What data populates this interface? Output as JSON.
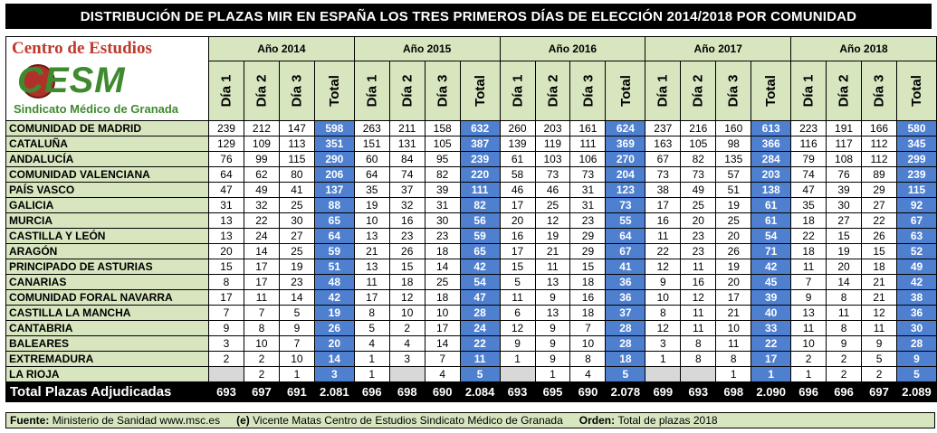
{
  "title": "DISTRIBUCIÓN DE PLAZAS MIR EN ESPAÑA LOS TRES PRIMEROS DÍAS DE ELECCIÓN 2014/2018 POR COMUNIDAD",
  "logo": {
    "line1": "Centro de Estudios",
    "line2": "CESM",
    "line3": "Sindicato Médico de Granada"
  },
  "footer": {
    "source_label": "Fuente:",
    "source_text": "Ministerio de Sanidad www.msc.es",
    "credit_label": "(e)",
    "credit_text": "Vicente Matas Centro de Estudios Sindicato Médico de Granada",
    "order_label": "Orden:",
    "order_text": "Total de plazas 2018"
  },
  "chart_data": {
    "type": "table",
    "title": "DISTRIBUCIÓN DE PLAZAS MIR EN ESPAÑA LOS TRES PRIMEROS DÍAS DE ELECCIÓN 2014/2018 POR COMUNIDAD",
    "years": [
      "Año 2014",
      "Año 2015",
      "Año 2016",
      "Año 2017",
      "Año 2018"
    ],
    "columns": [
      "Día 1",
      "Día 2",
      "Día 3",
      "Total"
    ],
    "rows": [
      {
        "region": "COMUNIDAD DE MADRID",
        "values": [
          "239",
          "212",
          "147",
          "598",
          "263",
          "211",
          "158",
          "632",
          "260",
          "203",
          "161",
          "624",
          "237",
          "216",
          "160",
          "613",
          "223",
          "191",
          "166",
          "580"
        ]
      },
      {
        "region": "CATALUÑA",
        "values": [
          "129",
          "109",
          "113",
          "351",
          "151",
          "131",
          "105",
          "387",
          "139",
          "119",
          "111",
          "369",
          "163",
          "105",
          "98",
          "366",
          "116",
          "117",
          "112",
          "345"
        ]
      },
      {
        "region": "ANDALUCÍA",
        "values": [
          "76",
          "99",
          "115",
          "290",
          "60",
          "84",
          "95",
          "239",
          "61",
          "103",
          "106",
          "270",
          "67",
          "82",
          "135",
          "284",
          "79",
          "108",
          "112",
          "299"
        ]
      },
      {
        "region": "COMUNIDAD VALENCIANA",
        "values": [
          "64",
          "62",
          "80",
          "206",
          "64",
          "74",
          "82",
          "220",
          "58",
          "73",
          "73",
          "204",
          "73",
          "73",
          "57",
          "203",
          "74",
          "76",
          "89",
          "239"
        ]
      },
      {
        "region": "PAÍS VASCO",
        "values": [
          "47",
          "49",
          "41",
          "137",
          "35",
          "37",
          "39",
          "111",
          "46",
          "46",
          "31",
          "123",
          "38",
          "49",
          "51",
          "138",
          "47",
          "39",
          "29",
          "115"
        ]
      },
      {
        "region": "GALICIA",
        "values": [
          "31",
          "32",
          "25",
          "88",
          "19",
          "32",
          "31",
          "82",
          "17",
          "25",
          "31",
          "73",
          "17",
          "25",
          "19",
          "61",
          "35",
          "30",
          "27",
          "92"
        ]
      },
      {
        "region": "MURCIA",
        "values": [
          "13",
          "22",
          "30",
          "65",
          "10",
          "16",
          "30",
          "56",
          "20",
          "12",
          "23",
          "55",
          "16",
          "20",
          "25",
          "61",
          "18",
          "27",
          "22",
          "67"
        ]
      },
      {
        "region": "CASTILLA Y LEÓN",
        "values": [
          "13",
          "24",
          "27",
          "64",
          "13",
          "23",
          "23",
          "59",
          "16",
          "19",
          "29",
          "64",
          "11",
          "23",
          "20",
          "54",
          "22",
          "15",
          "26",
          "63"
        ]
      },
      {
        "region": "ARAGÓN",
        "values": [
          "20",
          "14",
          "25",
          "59",
          "21",
          "26",
          "18",
          "65",
          "17",
          "21",
          "29",
          "67",
          "22",
          "23",
          "26",
          "71",
          "18",
          "19",
          "15",
          "52"
        ]
      },
      {
        "region": "PRINCIPADO DE ASTURIAS",
        "values": [
          "15",
          "17",
          "19",
          "51",
          "13",
          "15",
          "14",
          "42",
          "15",
          "11",
          "15",
          "41",
          "12",
          "11",
          "19",
          "42",
          "11",
          "20",
          "18",
          "49"
        ]
      },
      {
        "region": "CANARIAS",
        "values": [
          "8",
          "17",
          "23",
          "48",
          "11",
          "18",
          "25",
          "54",
          "5",
          "13",
          "18",
          "36",
          "9",
          "16",
          "20",
          "45",
          "7",
          "14",
          "21",
          "42"
        ]
      },
      {
        "region": "COMUNIDAD FORAL NAVARRA",
        "values": [
          "17",
          "11",
          "14",
          "42",
          "17",
          "12",
          "18",
          "47",
          "11",
          "9",
          "16",
          "36",
          "10",
          "12",
          "17",
          "39",
          "9",
          "8",
          "21",
          "38"
        ]
      },
      {
        "region": "CASTILLA LA MANCHA",
        "values": [
          "7",
          "7",
          "5",
          "19",
          "8",
          "10",
          "10",
          "28",
          "6",
          "13",
          "18",
          "37",
          "8",
          "11",
          "21",
          "40",
          "13",
          "11",
          "12",
          "36"
        ]
      },
      {
        "region": "CANTABRIA",
        "values": [
          "9",
          "8",
          "9",
          "26",
          "5",
          "2",
          "17",
          "24",
          "12",
          "9",
          "7",
          "28",
          "12",
          "11",
          "10",
          "33",
          "11",
          "8",
          "11",
          "30"
        ]
      },
      {
        "region": "BALEARES",
        "values": [
          "3",
          "10",
          "7",
          "20",
          "4",
          "4",
          "14",
          "22",
          "9",
          "9",
          "10",
          "28",
          "3",
          "8",
          "11",
          "22",
          "10",
          "9",
          "9",
          "28"
        ]
      },
      {
        "region": "EXTREMADURA",
        "values": [
          "2",
          "2",
          "10",
          "14",
          "1",
          "3",
          "7",
          "11",
          "1",
          "9",
          "8",
          "18",
          "1",
          "8",
          "8",
          "17",
          "2",
          "2",
          "5",
          "9"
        ]
      },
      {
        "region": "LA RIOJA",
        "values": [
          "",
          "2",
          "1",
          "3",
          "1",
          "",
          "4",
          "5",
          "",
          "1",
          "4",
          "5",
          "",
          "",
          "1",
          "1",
          "1",
          "2",
          "2",
          "5"
        ]
      }
    ],
    "total": {
      "label": "Total Plazas Adjudicadas",
      "values": [
        "693",
        "697",
        "691",
        "2.081",
        "696",
        "698",
        "690",
        "2.084",
        "693",
        "695",
        "690",
        "2.078",
        "699",
        "693",
        "698",
        "2.090",
        "696",
        "696",
        "697",
        "2.089"
      ]
    }
  }
}
